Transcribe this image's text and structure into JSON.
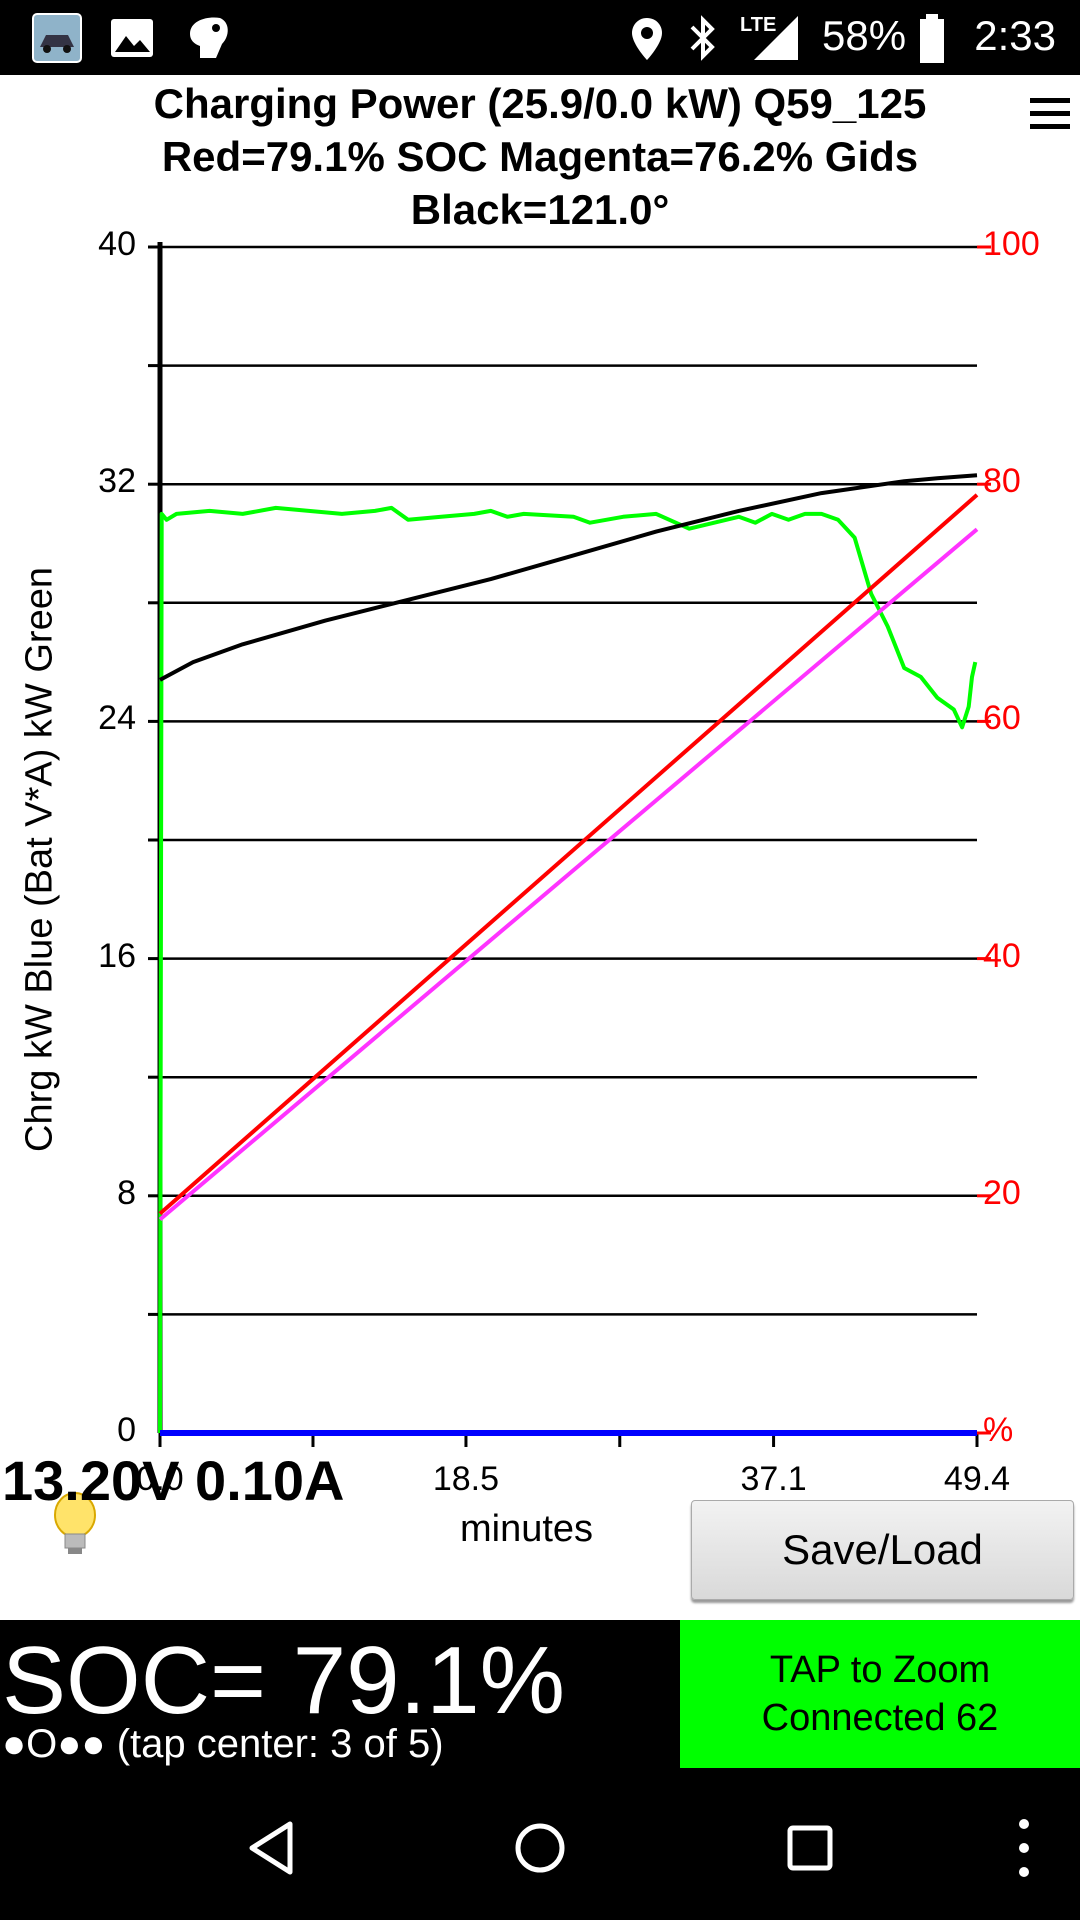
{
  "status_bar": {
    "battery_percent": "58%",
    "time": "2:33",
    "network": "LTE",
    "icons": [
      "car-app-icon",
      "gallery-icon",
      "tag-icon",
      "location-icon",
      "bluetooth-icon",
      "signal-icon",
      "battery-icon"
    ]
  },
  "header": {
    "title_line1": "Charging Power (25.9/0.0 kW)   Q59_125",
    "title_line2": "Red=79.1% SOC     Magenta=76.2% Gids",
    "title_line3": "Black=121.0°"
  },
  "chart_data": {
    "type": "line",
    "xlabel": "minutes",
    "ylabel": "Chrg kW Blue  (Bat V*A) kW Green",
    "x_ticks": [
      "0.0",
      "18.5",
      "37.1",
      "49.4"
    ],
    "xlim": [
      0,
      49.4
    ],
    "y_left_ticks": [
      "40",
      "32",
      "24",
      "16",
      "8",
      "0"
    ],
    "ylim_left": [
      0,
      40
    ],
    "y_right_ticks": [
      "100",
      "80",
      "60",
      "40",
      "20",
      "%"
    ],
    "ylim_right": [
      0,
      100
    ],
    "grid": true,
    "series": [
      {
        "color": "#00ff00",
        "axis": "left",
        "x": [
          0,
          0.1,
          0.4,
          1,
          3,
          5,
          7,
          9,
          11,
          13,
          14,
          15,
          17,
          19,
          20,
          21,
          22,
          25,
          26,
          28,
          30,
          32,
          35,
          36,
          37,
          38,
          39,
          40,
          41,
          42,
          43,
          44,
          45,
          46,
          47,
          48,
          48.5,
          48.9,
          49.1,
          49.3
        ],
        "y": [
          0,
          31,
          30.8,
          31,
          31.1,
          31,
          31.2,
          31.1,
          31,
          31.1,
          31.2,
          30.8,
          30.9,
          31,
          31.1,
          30.9,
          31,
          30.9,
          30.7,
          30.9,
          31,
          30.5,
          30.9,
          30.7,
          31,
          30.8,
          31,
          31,
          30.8,
          30.2,
          28.3,
          27.2,
          25.8,
          25.5,
          24.8,
          24.4,
          23.8,
          24.5,
          25.5,
          26
        ]
      },
      {
        "color": "#000000",
        "axis": "left",
        "x": [
          0,
          2,
          5,
          10,
          15,
          20,
          25,
          30,
          35,
          40,
          45,
          47,
          49.4
        ],
        "y": [
          25.4,
          26,
          26.6,
          27.4,
          28.1,
          28.8,
          29.6,
          30.4,
          31.1,
          31.7,
          32.1,
          32.2,
          32.3
        ]
      },
      {
        "color": "#ff0000",
        "axis": "right",
        "x": [
          0,
          49.4
        ],
        "y": [
          18.5,
          79.1
        ]
      },
      {
        "color": "#ff33ff",
        "axis": "right",
        "x": [
          0,
          49.4
        ],
        "y": [
          18,
          76.2
        ]
      },
      {
        "color": "#0000ff",
        "axis": "left",
        "x": [
          0,
          49.4
        ],
        "y": [
          0,
          0
        ]
      }
    ]
  },
  "readout": {
    "voltage_current": "13.20V 0.10A"
  },
  "buttons": {
    "save_load": "Save/Load",
    "zoom_line1": "TAP to Zoom",
    "zoom_line2": "Connected 62"
  },
  "bottom": {
    "soc": "SOC= 79.1%",
    "tap_center": "●O●● (tap center: 3 of 5)"
  }
}
